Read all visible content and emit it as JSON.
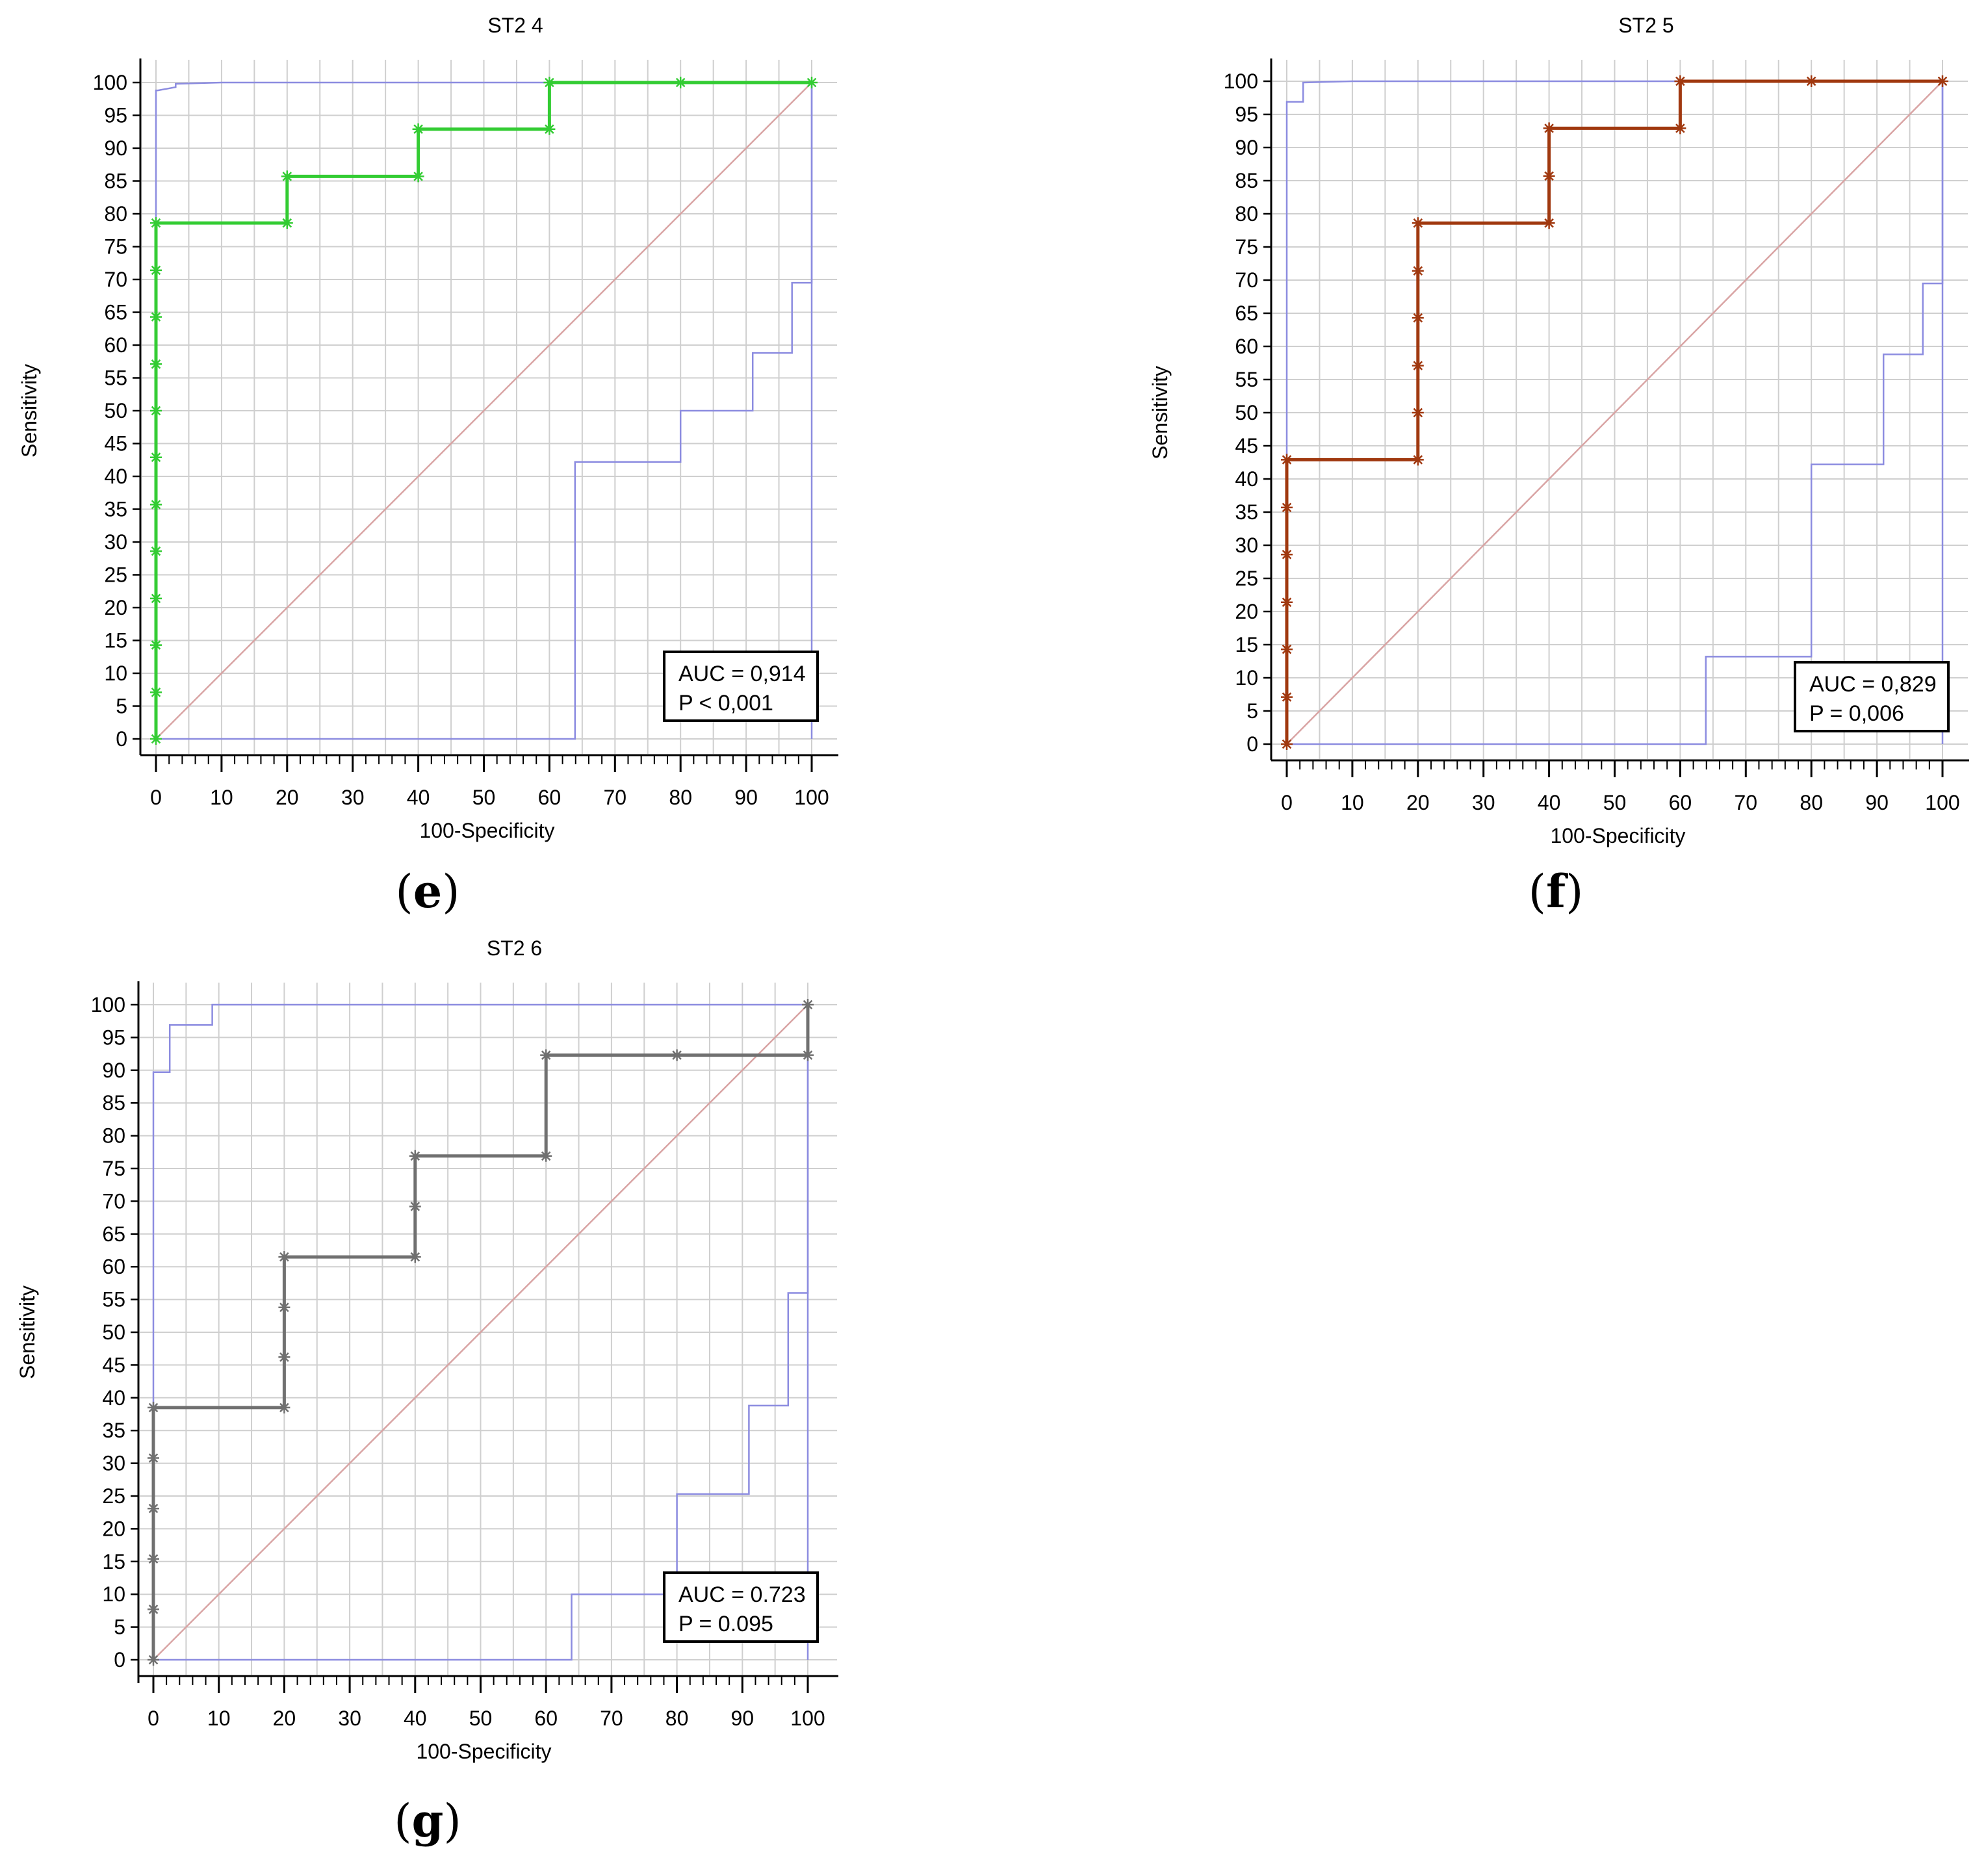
{
  "chart_data": [
    {
      "type": "line",
      "panel": "e",
      "title": "ST2 4",
      "xlabel": "100-Specificity",
      "ylabel": "Sensitivity",
      "xlim": [
        0,
        100
      ],
      "ylim": [
        0,
        100
      ],
      "xticks": [
        0,
        10,
        20,
        30,
        40,
        50,
        60,
        70,
        80,
        90,
        100
      ],
      "yticks": [
        0,
        5,
        10,
        15,
        20,
        25,
        30,
        35,
        40,
        45,
        50,
        55,
        60,
        65,
        70,
        75,
        80,
        85,
        90,
        95,
        100
      ],
      "grid": true,
      "color": "#33cc33",
      "roc_curve": {
        "x": [
          0,
          0,
          0,
          0,
          0,
          0,
          0,
          0,
          0,
          0,
          0,
          0,
          20,
          20,
          40,
          40,
          60,
          60,
          80,
          100
        ],
        "y": [
          0,
          7.1,
          14.3,
          21.4,
          28.6,
          35.7,
          42.9,
          50,
          57.1,
          64.3,
          71.4,
          78.6,
          78.6,
          85.7,
          85.7,
          92.9,
          92.9,
          100,
          100,
          100
        ]
      },
      "ci_upper": {
        "x": [
          0,
          0,
          0.3,
          3,
          3,
          10,
          60,
          100,
          100
        ],
        "y": [
          0,
          98.8,
          98.8,
          99.3,
          99.8,
          100,
          100,
          100,
          0
        ]
      },
      "ci_lower": {
        "x": [
          0,
          63.9,
          63.9,
          80,
          80,
          91,
          91,
          97,
          97,
          100,
          100
        ],
        "y": [
          0,
          0,
          42.2,
          42.2,
          50,
          50,
          58.8,
          58.8,
          69.5,
          69.5,
          100
        ]
      },
      "diagonal": [
        [
          0,
          0
        ],
        [
          100,
          100
        ]
      ],
      "auc_text": "AUC = 0,914",
      "p_text": "P < 0,001",
      "legend": "bottom-right"
    },
    {
      "type": "line",
      "panel": "f",
      "title": "ST2 5",
      "xlabel": "100-Specificity",
      "ylabel": "Sensitivity",
      "xlim": [
        0,
        100
      ],
      "ylim": [
        0,
        100
      ],
      "xticks": [
        0,
        10,
        20,
        30,
        40,
        50,
        60,
        70,
        80,
        90,
        100
      ],
      "yticks": [
        0,
        5,
        10,
        15,
        20,
        25,
        30,
        35,
        40,
        45,
        50,
        55,
        60,
        65,
        70,
        75,
        80,
        85,
        90,
        95,
        100
      ],
      "grid": true,
      "color": "#a0380f",
      "roc_curve": {
        "x": [
          0,
          0,
          0,
          0,
          0,
          0,
          0,
          20,
          20,
          20,
          20,
          20,
          20,
          40,
          40,
          40,
          60,
          60,
          80,
          100
        ],
        "y": [
          0,
          7.1,
          14.3,
          21.4,
          28.6,
          35.7,
          42.9,
          42.9,
          50,
          57.1,
          64.3,
          71.4,
          78.6,
          78.6,
          85.7,
          92.9,
          92.9,
          100,
          100,
          100
        ]
      },
      "ci_upper": {
        "x": [
          0,
          0,
          2.5,
          2.5,
          10,
          60,
          100,
          100
        ],
        "y": [
          0,
          96.9,
          96.9,
          99.8,
          100,
          100,
          100,
          0
        ]
      },
      "ci_lower": {
        "x": [
          0,
          63.9,
          63.9,
          80,
          80,
          91,
          91,
          97,
          97,
          100,
          100
        ],
        "y": [
          0,
          0,
          13.2,
          13.2,
          42.2,
          42.2,
          58.8,
          58.8,
          69.5,
          69.5,
          100
        ]
      },
      "diagonal": [
        [
          0,
          0
        ],
        [
          100,
          100
        ]
      ],
      "auc_text": "AUC = 0,829",
      "p_text": "P = 0,006",
      "legend": "bottom-right"
    },
    {
      "type": "line",
      "panel": "g",
      "title": "ST2 6",
      "xlabel": "100-Specificity",
      "ylabel": "Sensitivity",
      "xlim": [
        0,
        100
      ],
      "ylim": [
        0,
        100
      ],
      "xticks": [
        0,
        10,
        20,
        30,
        40,
        50,
        60,
        70,
        80,
        90,
        100
      ],
      "yticks": [
        0,
        5,
        10,
        15,
        20,
        25,
        30,
        35,
        40,
        45,
        50,
        55,
        60,
        65,
        70,
        75,
        80,
        85,
        90,
        95,
        100
      ],
      "grid": true,
      "color": "#707070",
      "roc_curve": {
        "x": [
          0,
          0,
          0,
          0,
          0,
          0,
          20,
          20,
          20,
          20,
          40,
          40,
          40,
          60,
          60,
          80,
          100,
          100
        ],
        "y": [
          0,
          7.7,
          15.4,
          23.1,
          30.8,
          38.5,
          38.5,
          46.2,
          53.8,
          61.5,
          61.5,
          69.2,
          76.9,
          76.9,
          92.3,
          92.3,
          92.3,
          100
        ]
      },
      "ci_upper": {
        "x": [
          0,
          0,
          2.5,
          2.5,
          9,
          9,
          60,
          100,
          100
        ],
        "y": [
          0,
          89.7,
          89.7,
          96.9,
          96.9,
          100,
          100,
          100,
          0
        ]
      },
      "ci_lower": {
        "x": [
          0,
          63.9,
          63.9,
          80,
          80,
          91,
          91,
          97,
          97,
          100,
          100
        ],
        "y": [
          0,
          0,
          10,
          10,
          25.3,
          25.3,
          38.8,
          38.8,
          56,
          56,
          100
        ]
      },
      "diagonal": [
        [
          0,
          0
        ],
        [
          100,
          100
        ]
      ],
      "auc_text": "AUC = 0.723",
      "p_text": "P = 0.095",
      "legend": "bottom-right"
    }
  ],
  "colors": {
    "ci": "#8c8ce0",
    "diagonal": "#d9a4a4",
    "grid": "#cfcfcf",
    "axis": "#000000"
  }
}
